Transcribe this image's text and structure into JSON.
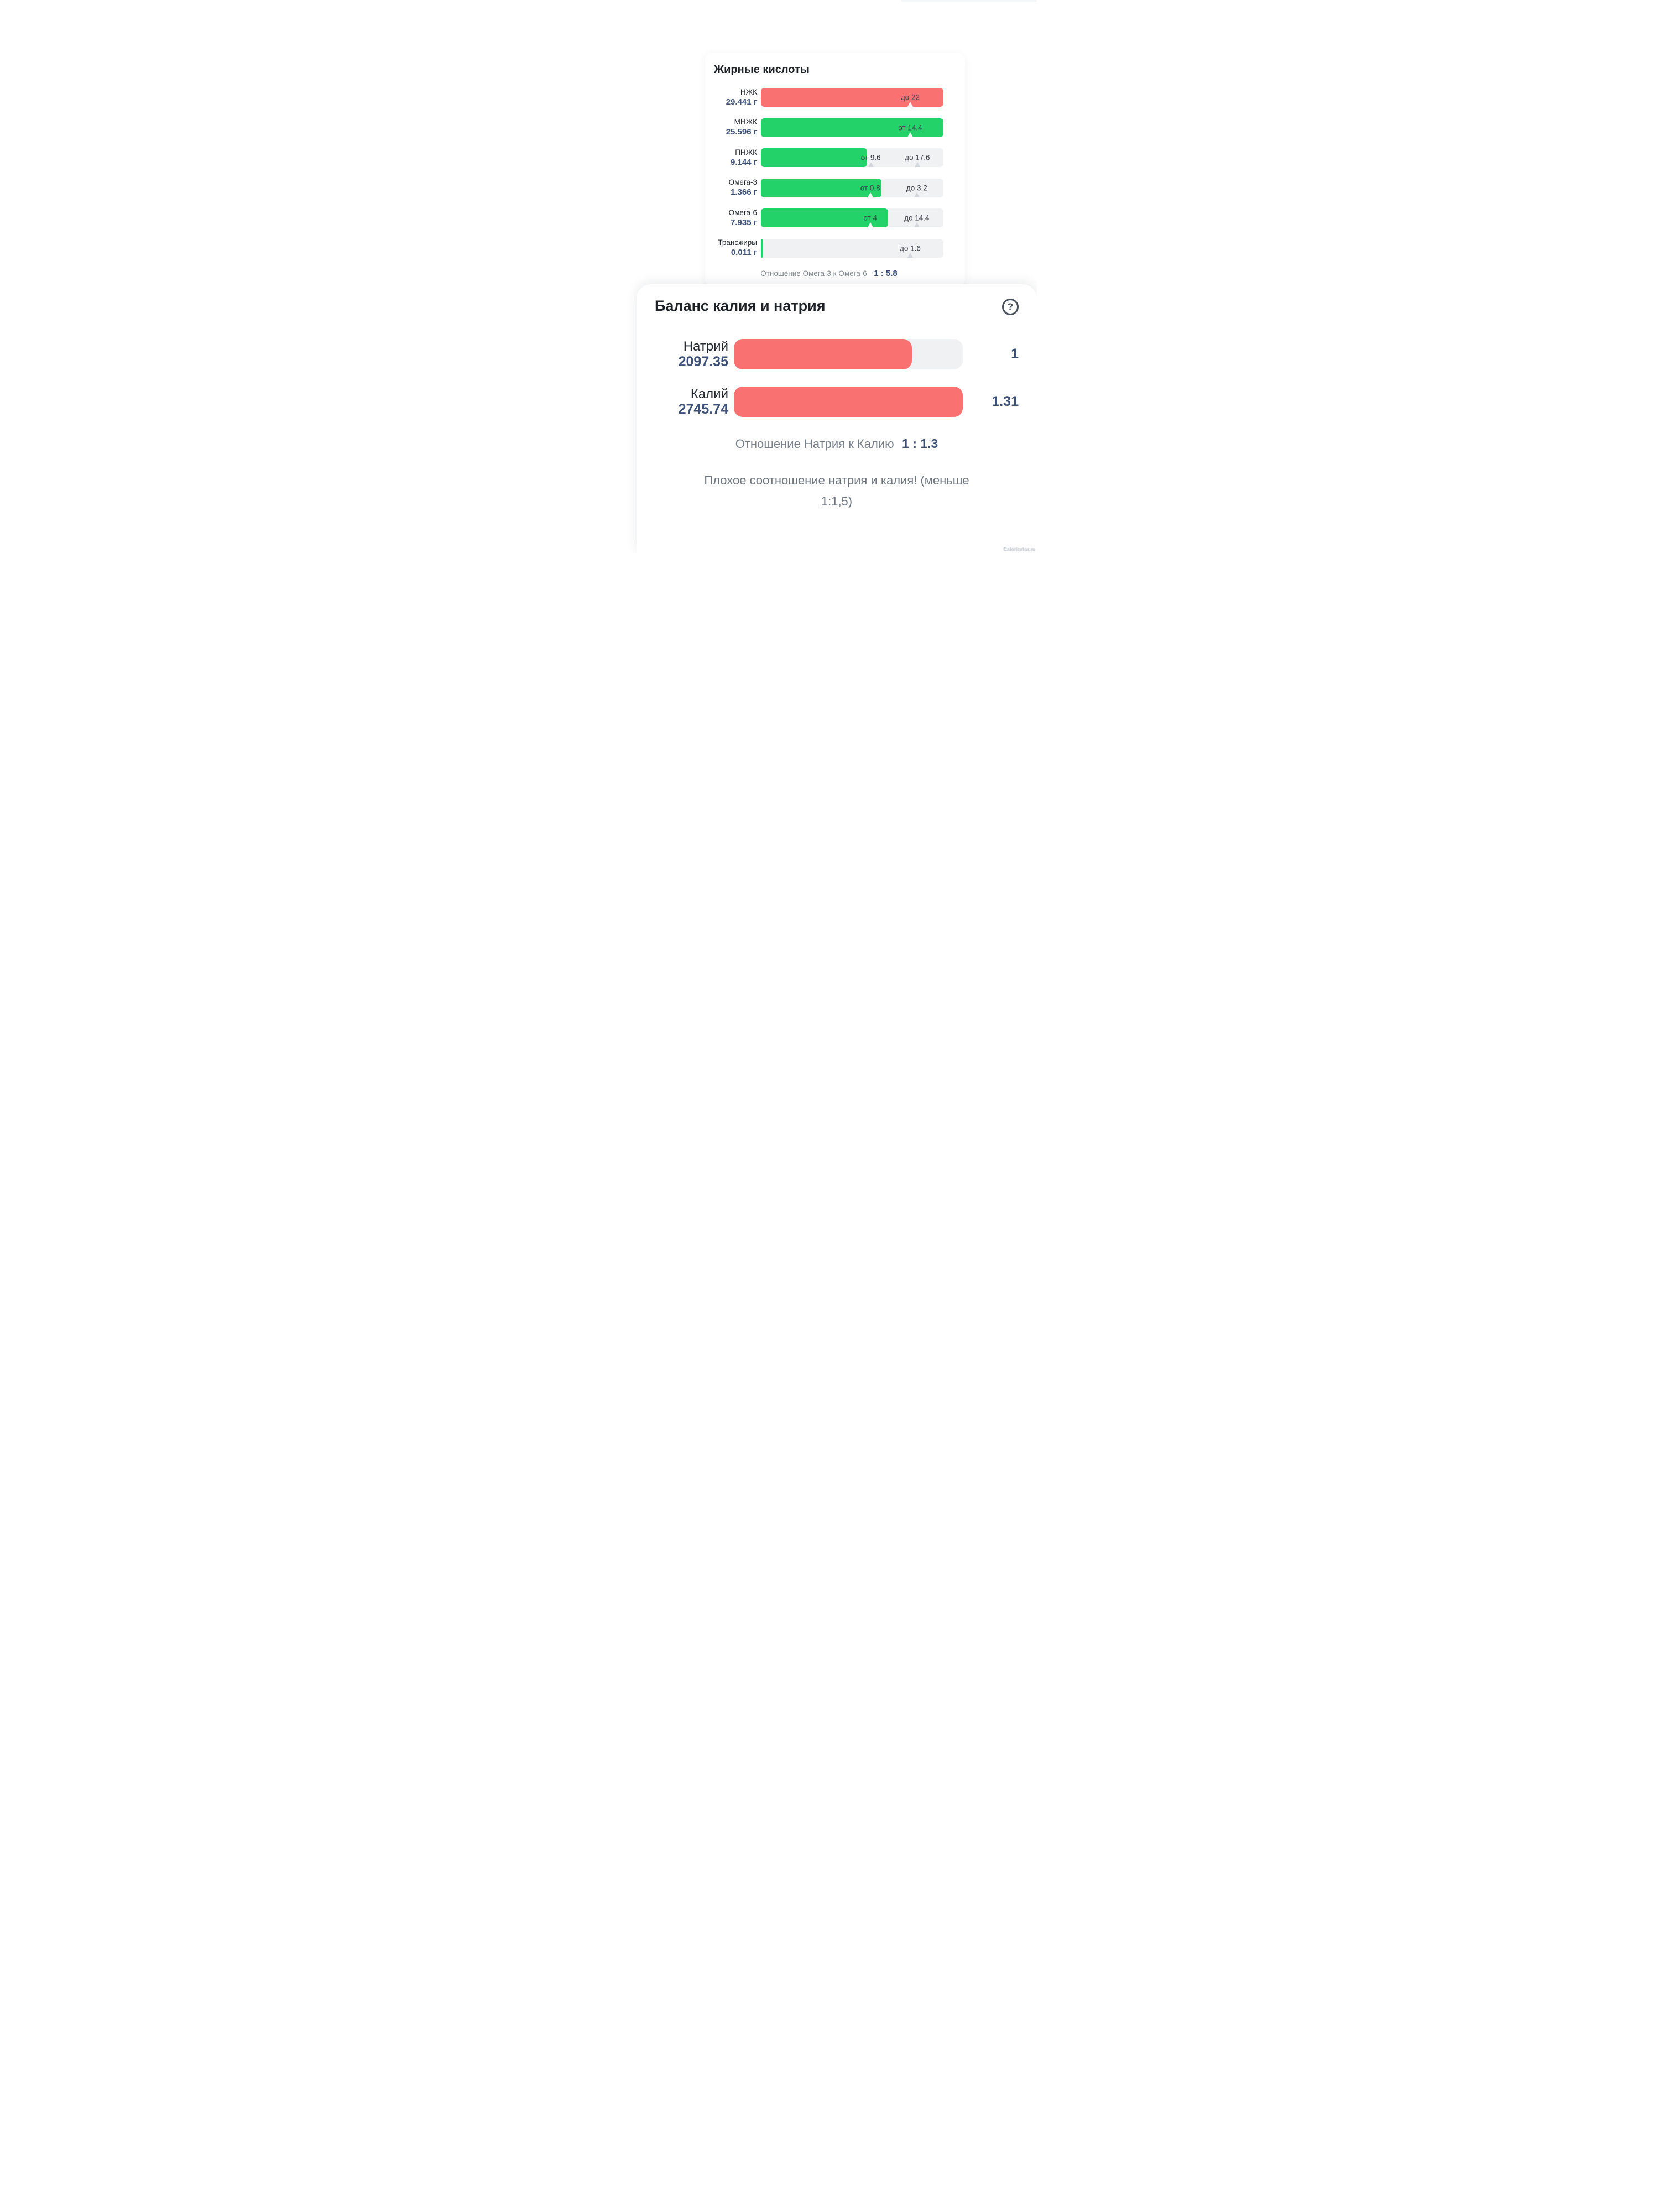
{
  "fatty_acids": {
    "title": "Жирные кислоты",
    "rows": [
      {
        "name": "НЖК",
        "value": "29.441 г",
        "fill_pct": 100,
        "fill_color": "#f97170",
        "markers": [
          {
            "label": "до 22",
            "pos_pct": 81.8,
            "caret_color": "rgba(255,255,255,0.92)"
          }
        ]
      },
      {
        "name": "МНЖК",
        "value": "25.596 г",
        "fill_pct": 100,
        "fill_color": "#23d268",
        "markers": [
          {
            "label": "от 14.4",
            "pos_pct": 81.8,
            "caret_color": "rgba(255,255,255,0.92)"
          }
        ]
      },
      {
        "name": "ПНЖК",
        "value": "9.144 г",
        "fill_pct": 58.1,
        "fill_color": "#23d268",
        "markers": [
          {
            "label": "от 9.6",
            "pos_pct": 60.2,
            "caret_color": "#d3d6da"
          },
          {
            "label": "до 17.6",
            "pos_pct": 85.7,
            "caret_color": "#d3d6da"
          }
        ]
      },
      {
        "name": "Омега-3",
        "value": "1.366 г",
        "fill_pct": 66.0,
        "fill_color": "#23d268",
        "markers": [
          {
            "label": "от 0.8",
            "pos_pct": 59.9,
            "caret_color": "rgba(255,255,255,0.92)"
          },
          {
            "label": "до 3.2",
            "pos_pct": 85.4,
            "caret_color": "#d3d6da"
          }
        ]
      },
      {
        "name": "Омега-6",
        "value": "7.935 г",
        "fill_pct": 69.6,
        "fill_color": "#23d268",
        "markers": [
          {
            "label": "от 4",
            "pos_pct": 59.9,
            "caret_color": "rgba(255,255,255,0.92)"
          },
          {
            "label": "до 14.4",
            "pos_pct": 85.4,
            "caret_color": "#d3d6da"
          }
        ]
      },
      {
        "name": "Трансжиры",
        "value": "0.011 г",
        "fill_pct": 0.8,
        "fill_color": "#23d268",
        "markers": [
          {
            "label": "до 1.6",
            "pos_pct": 81.8,
            "caret_color": "#d3d6da"
          }
        ]
      }
    ],
    "ratio_label": "Отношение Омега-3 к Омега-6",
    "ratio_value": "1 : 5.8"
  },
  "balance": {
    "title": "Баланс калия и натрия",
    "help_icon": "?",
    "rows": [
      {
        "name": "Натрий",
        "value": "2097.35",
        "fill_pct": 77.7,
        "fill_color": "#f97170",
        "ratio": "1"
      },
      {
        "name": "Калий",
        "value": "2745.74",
        "fill_pct": 100,
        "fill_color": "#f97170",
        "ratio": "1.31"
      }
    ],
    "ratio_label": "Отношение Натрия к Калию",
    "ratio_value": "1 : 1.3",
    "warning_line1": "Плохое соотношение натрия и калия! (меньше",
    "warning_line2": "1:1,5)"
  },
  "watermark": "Calorizator.ru",
  "colors": {
    "bar_red": "#f97170",
    "bar_green": "#23d268",
    "bar_track": "#f0f1f3",
    "value_navy": "#3d5178",
    "text_dark": "#1e2227",
    "text_gray": "#787f88"
  },
  "chart_data": [
    {
      "type": "bar",
      "title": "Жирные кислоты",
      "categories": [
        "НЖК",
        "МНЖК",
        "ПНЖК",
        "Омега-3",
        "Омега-6",
        "Трансжиры"
      ],
      "values": [
        29.441,
        25.596,
        9.144,
        1.366,
        7.935,
        0.011
      ],
      "unit": "г",
      "norms": [
        {
          "max": 22
        },
        {
          "min": 14.4
        },
        {
          "min": 9.6,
          "max": 17.6
        },
        {
          "min": 0.8,
          "max": 3.2
        },
        {
          "min": 4,
          "max": 14.4
        },
        {
          "max": 1.6
        }
      ],
      "bar_status_colors": [
        "red",
        "green",
        "green",
        "green",
        "green",
        "none"
      ],
      "annotation": "Отношение Омега-3 к Омега-6 1 : 5.8",
      "legend_position": "none",
      "grid": false
    },
    {
      "type": "bar",
      "title": "Баланс калия и натрия",
      "categories": [
        "Натрий",
        "Калий"
      ],
      "values": [
        2097.35,
        2745.74
      ],
      "ratio_values": [
        1,
        1.31
      ],
      "annotation": "Отношение Натрия к Калию 1 : 1.3",
      "warning": "Плохое соотношение натрия и калия! (меньше 1:1,5)",
      "legend_position": "none",
      "grid": false
    }
  ]
}
